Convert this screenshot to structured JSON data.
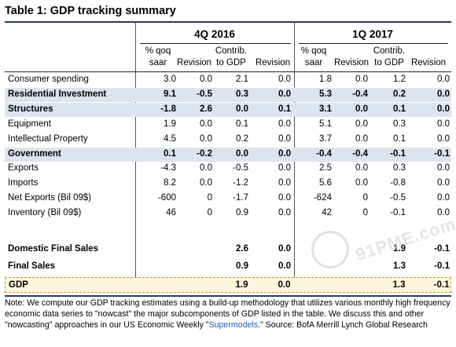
{
  "title": "Table 1: GDP tracking summary",
  "periods": [
    "4Q 2016",
    "1Q 2017"
  ],
  "col_headers": [
    {
      "l1": "% qoq",
      "l2": "saar"
    },
    {
      "l1": "",
      "l2": "Revision"
    },
    {
      "l1": "Contrib.",
      "l2": "to GDP"
    },
    {
      "l1": "",
      "l2": "Revision"
    },
    {
      "l1": "% qoq",
      "l2": "saar"
    },
    {
      "l1": "",
      "l2": "Revision"
    },
    {
      "l1": "Contrib.",
      "l2": "to GDP"
    },
    {
      "l1": "",
      "l2": "Revision"
    }
  ],
  "rows": [
    {
      "label": "Consumer spending",
      "values": [
        "3.0",
        "0.0",
        "2.1",
        "0.0",
        "1.8",
        "0.0",
        "1.2",
        "0.0"
      ],
      "bold": false,
      "highlight": false
    },
    {
      "label": "Residential Investment",
      "values": [
        "9.1",
        "-0.5",
        "0.3",
        "0.0",
        "5.3",
        "-0.4",
        "0.2",
        "0.0"
      ],
      "bold": true,
      "highlight": true
    },
    {
      "label": "Structures",
      "values": [
        "-1.8",
        "2.6",
        "0.0",
        "0.1",
        "3.1",
        "0.0",
        "0.1",
        "0.0"
      ],
      "bold": true,
      "highlight": true
    },
    {
      "label": "Equipment",
      "values": [
        "1.9",
        "0.0",
        "0.1",
        "0.0",
        "5.1",
        "0.0",
        "0.3",
        "0.0"
      ],
      "bold": false,
      "highlight": false
    },
    {
      "label": "Intellectual Property",
      "values": [
        "4.5",
        "0.0",
        "0.2",
        "0.0",
        "3.7",
        "0.0",
        "0.1",
        "0.0"
      ],
      "bold": false,
      "highlight": false
    },
    {
      "label": "Government",
      "values": [
        "0.1",
        "-0.2",
        "0.0",
        "0.0",
        "-0.4",
        "-0.4",
        "-0.1",
        "-0.1"
      ],
      "bold": true,
      "highlight": true
    },
    {
      "label": "Exports",
      "values": [
        "-4.3",
        "0.0",
        "-0.5",
        "0.0",
        "2.5",
        "0.0",
        "0.3",
        "0.0"
      ],
      "bold": false,
      "highlight": false
    },
    {
      "label": "Imports",
      "values": [
        "8.2",
        "0.0",
        "-1.2",
        "0.0",
        "5.6",
        "0.0",
        "-0.8",
        "0.0"
      ],
      "bold": false,
      "highlight": false
    },
    {
      "label": "Net Exports (Bil 09$)",
      "values": [
        "-600",
        "0",
        "-1.7",
        "0.0",
        "-624",
        "0",
        "-0.5",
        "0.0"
      ],
      "bold": false,
      "highlight": false
    },
    {
      "label": "Inventory (Bil 09$)",
      "values": [
        "46",
        "0",
        "0.9",
        "0.0",
        "42",
        "0",
        "-0.1",
        "0.0"
      ],
      "bold": false,
      "highlight": false
    }
  ],
  "summary_rows": [
    {
      "label": "Domestic Final Sales",
      "values": [
        "",
        "",
        "2.6",
        "0.0",
        "",
        "",
        "1.9",
        "-0.1"
      ]
    },
    {
      "label": "Final Sales",
      "values": [
        "",
        "",
        "0.9",
        "0.0",
        "",
        "",
        "1.3",
        "-0.1"
      ]
    }
  ],
  "gdp_row": {
    "label": "GDP",
    "values": [
      "",
      "",
      "1.9",
      "0.0",
      "",
      "",
      "1.3",
      "-0.1"
    ]
  },
  "note": {
    "before": "Note: We compute our GDP tracking estimates using a build-up methodology that utilizes various monthly high frequency economic data series to \"nowcast\" the major subcomponents of GDP listed in the table. We discuss this and other \"nowcasting\" approaches in our US Economic Weekly \"",
    "link": "Supermodels",
    "after": ".\" Source: BofA Merrill Lynch Global Research"
  },
  "watermark": {
    "text": "91PME.com",
    "icon": "watermark-logo-icon"
  },
  "colors": {
    "accent": "#1f3a6d",
    "highlight": "#dde3ef",
    "gdp_border": "#e08a1e",
    "link": "#1f5fb8"
  }
}
